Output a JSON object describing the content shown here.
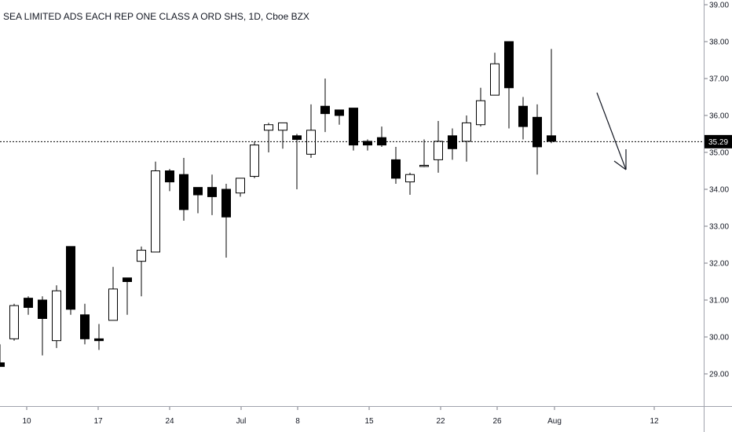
{
  "chart_data": {
    "type": "candlestick",
    "title": "SEA LIMITED ADS EACH REP ONE CLASS A ORD SHS, 1D, Cboe BZX",
    "ylim": [
      28.0,
      39.2
    ],
    "y_ticks": [
      "39.00",
      "38.00",
      "37.00",
      "36.00",
      "35.00",
      "34.00",
      "33.00",
      "32.00",
      "31.00",
      "30.00",
      "29.00"
    ],
    "x_ticks": [
      "10",
      "17",
      "24",
      "Jul",
      "8",
      "15",
      "22",
      "26",
      "Aug",
      "12"
    ],
    "last_price": 35.29,
    "last_price_label": "35.29",
    "grid": false,
    "annotation": "arrow pointing down-right",
    "candles": [
      {
        "o": 29.3,
        "h": 29.8,
        "l": 29.2,
        "c": 29.2
      },
      {
        "o": 29.95,
        "h": 30.9,
        "l": 29.9,
        "c": 30.85
      },
      {
        "o": 31.05,
        "h": 31.1,
        "l": 30.6,
        "c": 30.8
      },
      {
        "o": 31.0,
        "h": 31.1,
        "l": 29.5,
        "c": 30.5
      },
      {
        "o": 29.9,
        "h": 31.4,
        "l": 29.7,
        "c": 31.25
      },
      {
        "o": 32.45,
        "h": 32.45,
        "l": 30.6,
        "c": 30.75
      },
      {
        "o": 30.6,
        "h": 30.9,
        "l": 29.8,
        "c": 29.95
      },
      {
        "o": 29.95,
        "h": 30.35,
        "l": 29.65,
        "c": 29.9
      },
      {
        "o": 30.45,
        "h": 31.9,
        "l": 30.45,
        "c": 31.3
      },
      {
        "o": 31.6,
        "h": 31.6,
        "l": 30.6,
        "c": 31.5
      },
      {
        "o": 32.05,
        "h": 32.45,
        "l": 31.1,
        "c": 32.35
      },
      {
        "o": 32.3,
        "h": 34.75,
        "l": 32.3,
        "c": 34.5
      },
      {
        "o": 34.5,
        "h": 34.55,
        "l": 33.95,
        "c": 34.2
      },
      {
        "o": 34.4,
        "h": 34.85,
        "l": 33.15,
        "c": 33.45
      },
      {
        "o": 34.05,
        "h": 34.05,
        "l": 33.35,
        "c": 33.85
      },
      {
        "o": 34.05,
        "h": 34.4,
        "l": 33.3,
        "c": 33.8
      },
      {
        "o": 34.0,
        "h": 34.15,
        "l": 32.15,
        "c": 33.25
      },
      {
        "o": 33.9,
        "h": 34.2,
        "l": 33.8,
        "c": 34.3
      },
      {
        "o": 34.35,
        "h": 35.3,
        "l": 34.3,
        "c": 35.2
      },
      {
        "o": 35.6,
        "h": 35.8,
        "l": 35.0,
        "c": 35.75
      },
      {
        "o": 35.6,
        "h": 35.8,
        "l": 35.1,
        "c": 35.8
      },
      {
        "o": 35.45,
        "h": 35.5,
        "l": 34.0,
        "c": 35.35
      },
      {
        "o": 34.95,
        "h": 36.3,
        "l": 34.85,
        "c": 35.6
      },
      {
        "o": 36.25,
        "h": 37.0,
        "l": 35.55,
        "c": 36.05
      },
      {
        "o": 36.15,
        "h": 36.15,
        "l": 35.75,
        "c": 36.0
      },
      {
        "o": 36.2,
        "h": 36.2,
        "l": 35.05,
        "c": 35.2
      },
      {
        "o": 35.3,
        "h": 35.35,
        "l": 35.05,
        "c": 35.2
      },
      {
        "o": 35.4,
        "h": 35.7,
        "l": 35.15,
        "c": 35.2
      },
      {
        "o": 34.8,
        "h": 35.15,
        "l": 34.15,
        "c": 34.3
      },
      {
        "o": 34.2,
        "h": 34.45,
        "l": 33.85,
        "c": 34.4
      },
      {
        "o": 34.65,
        "h": 35.35,
        "l": 34.6,
        "c": 34.65
      },
      {
        "o": 34.8,
        "h": 35.85,
        "l": 34.45,
        "c": 35.3
      },
      {
        "o": 35.45,
        "h": 35.65,
        "l": 34.8,
        "c": 35.1
      },
      {
        "o": 35.3,
        "h": 36.0,
        "l": 34.75,
        "c": 35.8
      },
      {
        "o": 35.75,
        "h": 36.75,
        "l": 35.7,
        "c": 36.4
      },
      {
        "o": 36.55,
        "h": 37.7,
        "l": 36.55,
        "c": 37.4
      },
      {
        "o": 38.0,
        "h": 38.0,
        "l": 35.65,
        "c": 36.75
      },
      {
        "o": 36.25,
        "h": 36.5,
        "l": 35.35,
        "c": 35.7
      },
      {
        "o": 35.95,
        "h": 36.3,
        "l": 34.4,
        "c": 35.15
      },
      {
        "o": 35.45,
        "h": 37.8,
        "l": 35.25,
        "c": 35.3
      }
    ]
  },
  "colors": {
    "up_fill": "#ffffff",
    "down_fill": "#000000",
    "outline": "#000000",
    "axis": "#787b86",
    "last_label_bg": "#000000"
  }
}
